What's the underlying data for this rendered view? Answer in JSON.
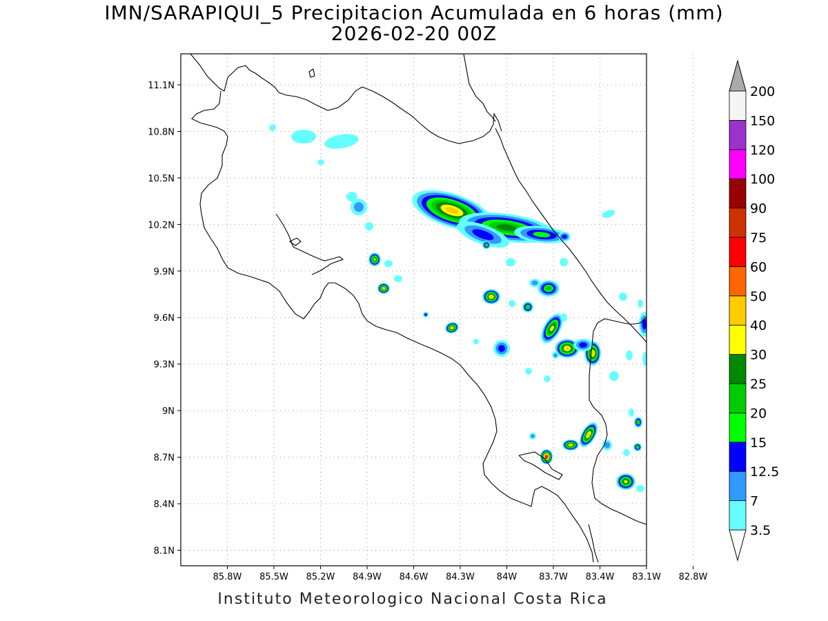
{
  "title_line1": "IMN/SARAPIQUI_5 Precipitacion Acumulada en 6 horas (mm)",
  "title_line2": "2026-02-20 00Z",
  "footer": "Instituto Meteorologico Nacional Costa Rica",
  "chart_data": {
    "type": "heatmap",
    "title": "IMN/SARAPIQUI_5 Precipitacion Acumulada en 6 horas (mm)",
    "subtitle": "2026-02-20 00Z",
    "xlim": [
      -86.1,
      -83.1
    ],
    "ylim": [
      8.0,
      11.3
    ],
    "x_ticks": [
      "85.8W",
      "85.5W",
      "85.2W",
      "84.9W",
      "84.6W",
      "84.3W",
      "84W",
      "83.7W",
      "83.4W",
      "83.1W",
      "82.8W"
    ],
    "y_ticks": [
      "11.1N",
      "10.8N",
      "10.5N",
      "10.2N",
      "9.9N",
      "9.6N",
      "9.3N",
      "9N",
      "8.7N",
      "8.4N",
      "8.1N"
    ],
    "grid": true,
    "colorbar": {
      "levels": [
        "3.5",
        "7",
        "12.5",
        "15",
        "20",
        "25",
        "30",
        "40",
        "50",
        "60",
        "75",
        "90",
        "100",
        "120",
        "150",
        "200"
      ],
      "colors": [
        "#66ffff",
        "#3399ff",
        "#0000ff",
        "#00ff00",
        "#00cc00",
        "#008800",
        "#ffff00",
        "#ffcc00",
        "#ff6600",
        "#ff0000",
        "#cc3300",
        "#990000",
        "#ff00ff",
        "#9933cc",
        "#f5f5f5",
        "#aaaaaa"
      ]
    },
    "cells": [
      {
        "lon": -83.96,
        "lat": 10.3,
        "max": 40
      },
      {
        "lon": -83.55,
        "lat": 10.17,
        "max": 25
      },
      {
        "lon": -84.55,
        "lat": 9.99,
        "max": 30
      },
      {
        "lon": -84.48,
        "lat": 9.79,
        "max": 40
      },
      {
        "lon": -83.66,
        "lat": 9.73,
        "max": 40
      },
      {
        "lon": -83.21,
        "lat": 9.79,
        "max": 20
      },
      {
        "lon": -83.2,
        "lat": 9.52,
        "max": 30
      },
      {
        "lon": -83.08,
        "lat": 9.42,
        "max": 40
      },
      {
        "lon": -82.95,
        "lat": 9.37,
        "max": 40
      },
      {
        "lon": -83.22,
        "lat": 8.7,
        "max": 75
      },
      {
        "lon": -83.07,
        "lat": 8.79,
        "max": 40
      },
      {
        "lon": -82.95,
        "lat": 8.82,
        "max": 40
      },
      {
        "lon": -82.72,
        "lat": 8.55,
        "max": 30
      },
      {
        "lon": -83.99,
        "lat": 9.52,
        "max": 40
      },
      {
        "lon": -83.4,
        "lat": 9.67,
        "max": 20
      }
    ]
  }
}
